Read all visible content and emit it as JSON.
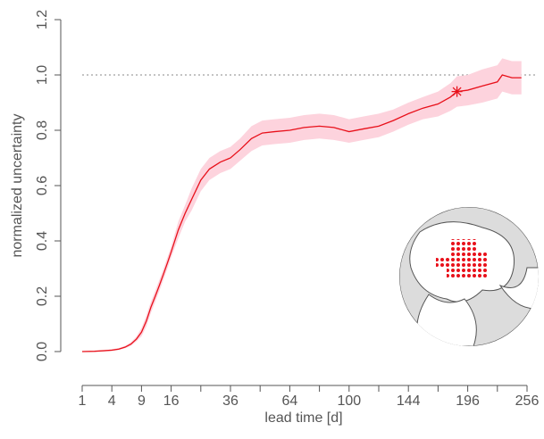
{
  "chart_data": {
    "type": "line",
    "xscale": "sqrt",
    "xlabel": "lead time [d]",
    "ylabel": "normalized uncertainty",
    "xlim": [
      1,
      256
    ],
    "xticks": [
      1,
      4,
      9,
      16,
      36,
      64,
      100,
      144,
      196,
      256
    ],
    "xminorticks": [
      25,
      49,
      81,
      121,
      169,
      225
    ],
    "ylim": [
      0,
      1.2
    ],
    "yticks": [
      {
        "value": 0,
        "label": "0.0"
      },
      0.2,
      0.4,
      0.6,
      0.8,
      {
        "value": 1,
        "label": "1.0"
      },
      1.2
    ],
    "hline": 1,
    "series": [
      {
        "color": "#e8101a",
        "band_color": "#fdd3dd",
        "x": [
          1,
          2,
          3,
          4,
          5,
          6,
          7,
          8,
          9,
          10,
          11,
          12,
          13,
          14,
          15,
          16,
          18,
          20,
          22,
          25,
          28,
          32,
          36,
          40,
          45,
          50,
          56,
          64,
          72,
          81,
          90,
          100,
          110,
          121,
          132,
          144,
          156,
          169,
          180,
          186,
          196,
          210,
          225,
          230,
          240,
          250
        ],
        "values": [
          0,
          0.001,
          0.003,
          0.005,
          0.009,
          0.016,
          0.027,
          0.045,
          0.07,
          0.11,
          0.16,
          0.2,
          0.24,
          0.28,
          0.32,
          0.36,
          0.44,
          0.5,
          0.55,
          0.62,
          0.66,
          0.685,
          0.7,
          0.73,
          0.77,
          0.79,
          0.795,
          0.8,
          0.81,
          0.815,
          0.81,
          0.795,
          0.805,
          0.815,
          0.835,
          0.86,
          0.88,
          0.895,
          0.92,
          0.94,
          0.945,
          0.96,
          0.975,
          1.0,
          0.99,
          0.99
        ],
        "lower": [
          0,
          0,
          0.001,
          0.003,
          0.006,
          0.012,
          0.021,
          0.037,
          0.055,
          0.09,
          0.14,
          0.18,
          0.22,
          0.26,
          0.3,
          0.34,
          0.41,
          0.47,
          0.51,
          0.58,
          0.62,
          0.645,
          0.66,
          0.69,
          0.725,
          0.745,
          0.75,
          0.755,
          0.765,
          0.77,
          0.765,
          0.755,
          0.765,
          0.775,
          0.795,
          0.82,
          0.84,
          0.85,
          0.87,
          0.885,
          0.89,
          0.9,
          0.915,
          0.94,
          0.93,
          0.93
        ],
        "upper": [
          0,
          0.002,
          0.005,
          0.008,
          0.013,
          0.021,
          0.034,
          0.054,
          0.085,
          0.13,
          0.18,
          0.22,
          0.26,
          0.3,
          0.34,
          0.38,
          0.47,
          0.53,
          0.59,
          0.66,
          0.7,
          0.725,
          0.74,
          0.77,
          0.815,
          0.835,
          0.84,
          0.845,
          0.855,
          0.86,
          0.855,
          0.84,
          0.85,
          0.86,
          0.875,
          0.9,
          0.92,
          0.94,
          0.97,
          0.995,
          1.0,
          1.02,
          1.035,
          1.06,
          1.05,
          1.05
        ]
      }
    ],
    "marker": {
      "x": 186,
      "y": 0.94
    }
  }
}
